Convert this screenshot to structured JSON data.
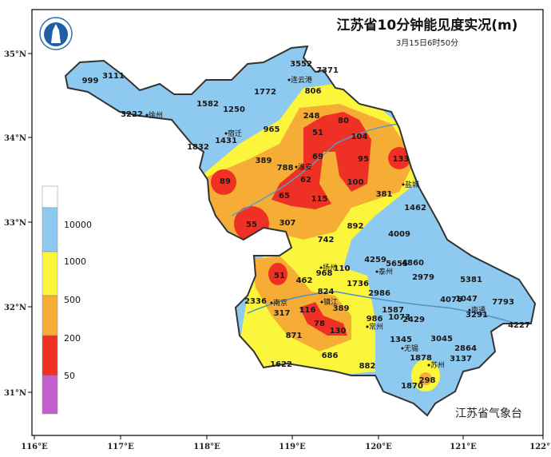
{
  "title": "江苏省10分钟能见度实况(m)",
  "subtitle": "3月15日6时50分",
  "source": "江苏省气象台",
  "logo_text": "江苏省气象台",
  "x_ticks": [
    "116°E",
    "117°E",
    "118°E",
    "119°E",
    "120°E",
    "121°E",
    "122°E"
  ],
  "y_ticks": [
    "35°N",
    "34°N",
    "33°N",
    "32°N",
    "31°N"
  ],
  "legend": {
    "labels": [
      "10000",
      "1000",
      "500",
      "200",
      "50"
    ],
    "colors": [
      "#ffffff",
      "#8ec9ef",
      "#fbf53c",
      "#f5ad35",
      "#ee3124",
      "#c45fd0"
    ]
  },
  "cities": [
    "徐州",
    "连云港",
    "宿迁",
    "淮安",
    "盐城",
    "扬州",
    "泰州",
    "南京",
    "镇江",
    "南通",
    "常州",
    "无锡",
    "苏州"
  ],
  "stations": [
    "999",
    "3111",
    "3222",
    "1582",
    "1250",
    "1772",
    "3552",
    "7371",
    "806",
    "248",
    "80",
    "965",
    "51",
    "104",
    "1431",
    "1832",
    "389",
    "69",
    "95",
    "133",
    "788",
    "62",
    "89",
    "100",
    "65",
    "115",
    "381",
    "1462",
    "55",
    "307",
    "892",
    "742",
    "4009",
    "4259",
    "5655",
    "4860",
    "110",
    "968",
    "2979",
    "51",
    "462",
    "5381",
    "1736",
    "2986",
    "824",
    "2336",
    "4076",
    "1047",
    "7793",
    "317",
    "116",
    "389",
    "1587",
    "3291",
    "986",
    "1073",
    "2429",
    "78",
    "4227",
    "130",
    "871",
    "3045",
    "1345",
    "2864",
    "3137",
    "686",
    "1878",
    "1622",
    "882",
    "298",
    "1870"
  ]
}
